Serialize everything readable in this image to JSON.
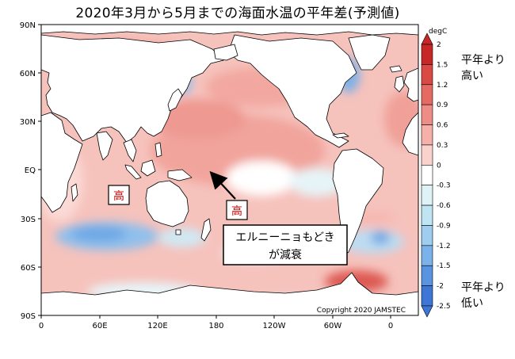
{
  "title": "2020年3月から5月までの海面水温の平年差(予測値)",
  "lat_labels": [
    "90N",
    "60N",
    "30N",
    "EQ",
    "30S",
    "60S",
    "90S"
  ],
  "lon_labels": [
    "0",
    "60E",
    "120E",
    "180",
    "120W",
    "60W",
    "0"
  ],
  "colorbar": {
    "unit": "degC",
    "ticks": [
      "2",
      "1.5",
      "1.2",
      "0.9",
      "0.6",
      "0.3",
      "0",
      "-0.3",
      "-0.6",
      "-0.9",
      "-1.2",
      "-1.5",
      "-2",
      "-2.5"
    ],
    "colors": [
      "#c62828",
      "#d94a44",
      "#e46a63",
      "#ee8d85",
      "#f5b0a9",
      "#fad2cd",
      "#ffffff",
      "#dff3f7",
      "#bfe4f2",
      "#9fcdef",
      "#7bb2ea",
      "#5a94e0",
      "#3d76d4"
    ],
    "high_label_1": "平年より",
    "high_label_2": "高い",
    "low_label_1": "平年より",
    "low_label_2": "低い"
  },
  "annotations": {
    "high_mark_1": "高",
    "high_mark_2": "高",
    "elnino_line1": "エルニーニョもどき",
    "elnino_line2": "が減衰"
  },
  "copyright": "Copyright 2020 JAMSTEC"
}
